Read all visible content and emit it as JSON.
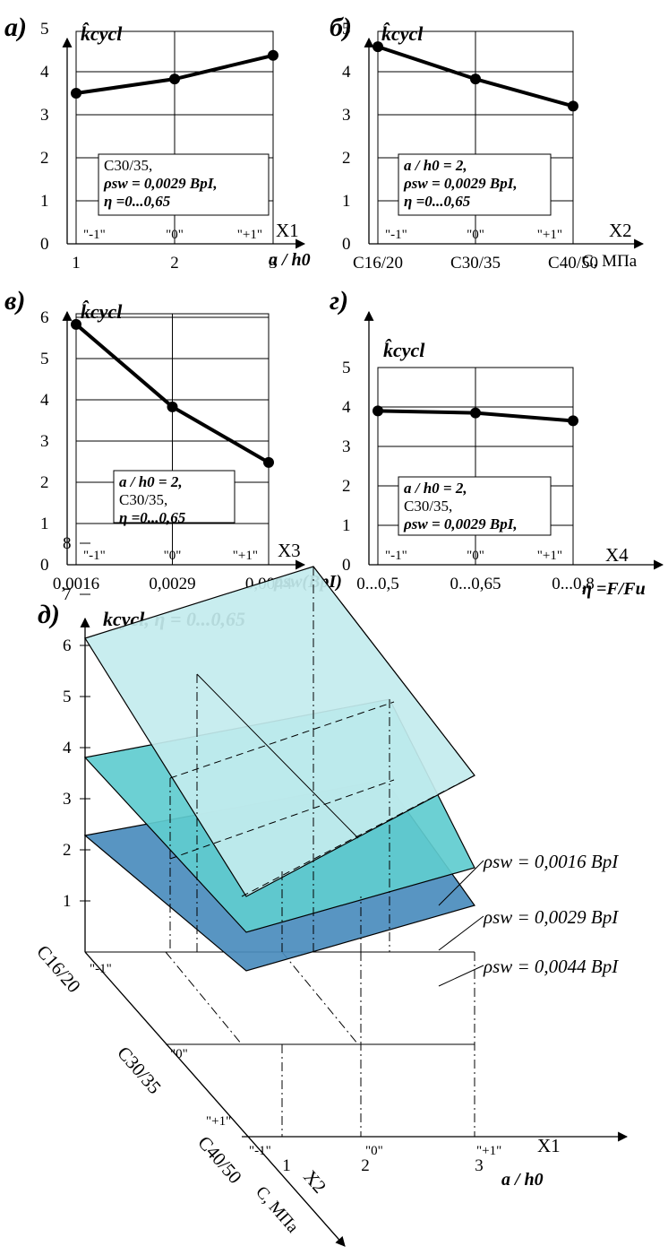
{
  "chart_data": [
    {
      "type": "line",
      "panel_label": "а)",
      "ylabel": "k̂cycl",
      "factor_symbol": "X1",
      "xlabel": "a / h0",
      "levels": [
        "\"-1\"",
        "\"0\"",
        "\"+1\""
      ],
      "x": [
        "1",
        "2",
        "3"
      ],
      "yticks": [
        "0",
        "1",
        "2",
        "3",
        "4",
        "5"
      ],
      "ylim": [
        0,
        5
      ],
      "values": [
        3.5,
        3.83,
        4.38
      ],
      "note": [
        "C30/35,",
        "ρsw = 0,0029 BpI,",
        "η =0...0,65"
      ],
      "grid": true
    },
    {
      "type": "line",
      "panel_label": "б)",
      "ylabel": "k̂cycl",
      "factor_symbol": "X2",
      "xlabel": "C, MПa",
      "levels": [
        "\"-1\"",
        "\"0\"",
        "\"+1\""
      ],
      "x": [
        "C16/20",
        "C30/35",
        "C40/50"
      ],
      "yticks": [
        "0",
        "1",
        "2",
        "3",
        "4",
        "5"
      ],
      "ylim": [
        0,
        5
      ],
      "values": [
        4.58,
        3.83,
        3.2
      ],
      "note": [
        "a / h0 = 2,",
        "ρsw = 0,0029 BpI,",
        "η =0...0,65"
      ],
      "grid": true
    },
    {
      "type": "line",
      "panel_label": "в)",
      "ylabel": "k̂cycl",
      "factor_symbol": "X3",
      "xlabel": "ρsw(BpI)",
      "levels": [
        "\"-1\"",
        "\"0\"",
        "\"+1\""
      ],
      "x": [
        "0,0016",
        "0,0029",
        "0,0044"
      ],
      "yticks": [
        "0",
        "1",
        "2",
        "3",
        "4",
        "5",
        "6"
      ],
      "ylim": [
        0,
        6
      ],
      "values": [
        5.83,
        3.83,
        2.48
      ],
      "note": [
        "a / h0 = 2,",
        "C30/35,",
        "η =0...0,65"
      ],
      "grid": true
    },
    {
      "type": "line",
      "panel_label": "г)",
      "ylabel": "k̂cycl",
      "factor_symbol": "X4",
      "xlabel": "η =F/Fu",
      "levels": [
        "\"-1\"",
        "\"0\"",
        "\"+1\""
      ],
      "x": [
        "0...0,5",
        "0...0,65",
        "0...0,8"
      ],
      "yticks": [
        "0",
        "1",
        "2",
        "3",
        "4",
        "5"
      ],
      "ylim": [
        0,
        5
      ],
      "values": [
        3.9,
        3.85,
        3.65
      ],
      "note": [
        "a / h0 = 2,",
        "C30/35,",
        "ρsw = 0,0029 BpI,"
      ],
      "grid": true
    },
    {
      "type": "surface3d",
      "panel_label": "д)",
      "zlabel": "kcycl,  η = 0...0,65",
      "zticks": [
        "1",
        "2",
        "3",
        "4",
        "5",
        "6",
        "7",
        "8"
      ],
      "zlim": [
        0,
        8
      ],
      "x_symbol": "X1",
      "xlabel": "a / h0",
      "x": [
        "1",
        "2",
        "3"
      ],
      "x_levels": [
        "\"-1\"",
        "\"0\"",
        "\"+1\""
      ],
      "y_symbol": "X2",
      "ylabel": "C, MПa",
      "y": [
        "C16/20",
        "C30/35",
        "C40/50"
      ],
      "y_levels": [
        "\"-1\"",
        "\"0\"",
        "\"+1\""
      ],
      "series": [
        {
          "name": "ρsw = 0,0016 BpI",
          "color": "#c3ecee",
          "corners": {
            "c16_a1": 6.15,
            "c16_a3": 7.7,
            "c40_a1": 0.9,
            "c40_a3": 1.0
          }
        },
        {
          "name": "ρsw = 0,0029 BpI",
          "color": "#5fcccf",
          "corners": {
            "c16_a1": 3.9,
            "c16_a3": 4.3,
            "c40_a1": -0.1,
            "c40_a3": 0.2
          }
        },
        {
          "name": "ρsw = 0,0044 BpI",
          "color": "#4a8cbd",
          "corners": {
            "c16_a1": 2.3,
            "c16_a3": 2.5,
            "c40_a1": -0.8,
            "c40_a3": -0.5
          }
        }
      ]
    }
  ]
}
